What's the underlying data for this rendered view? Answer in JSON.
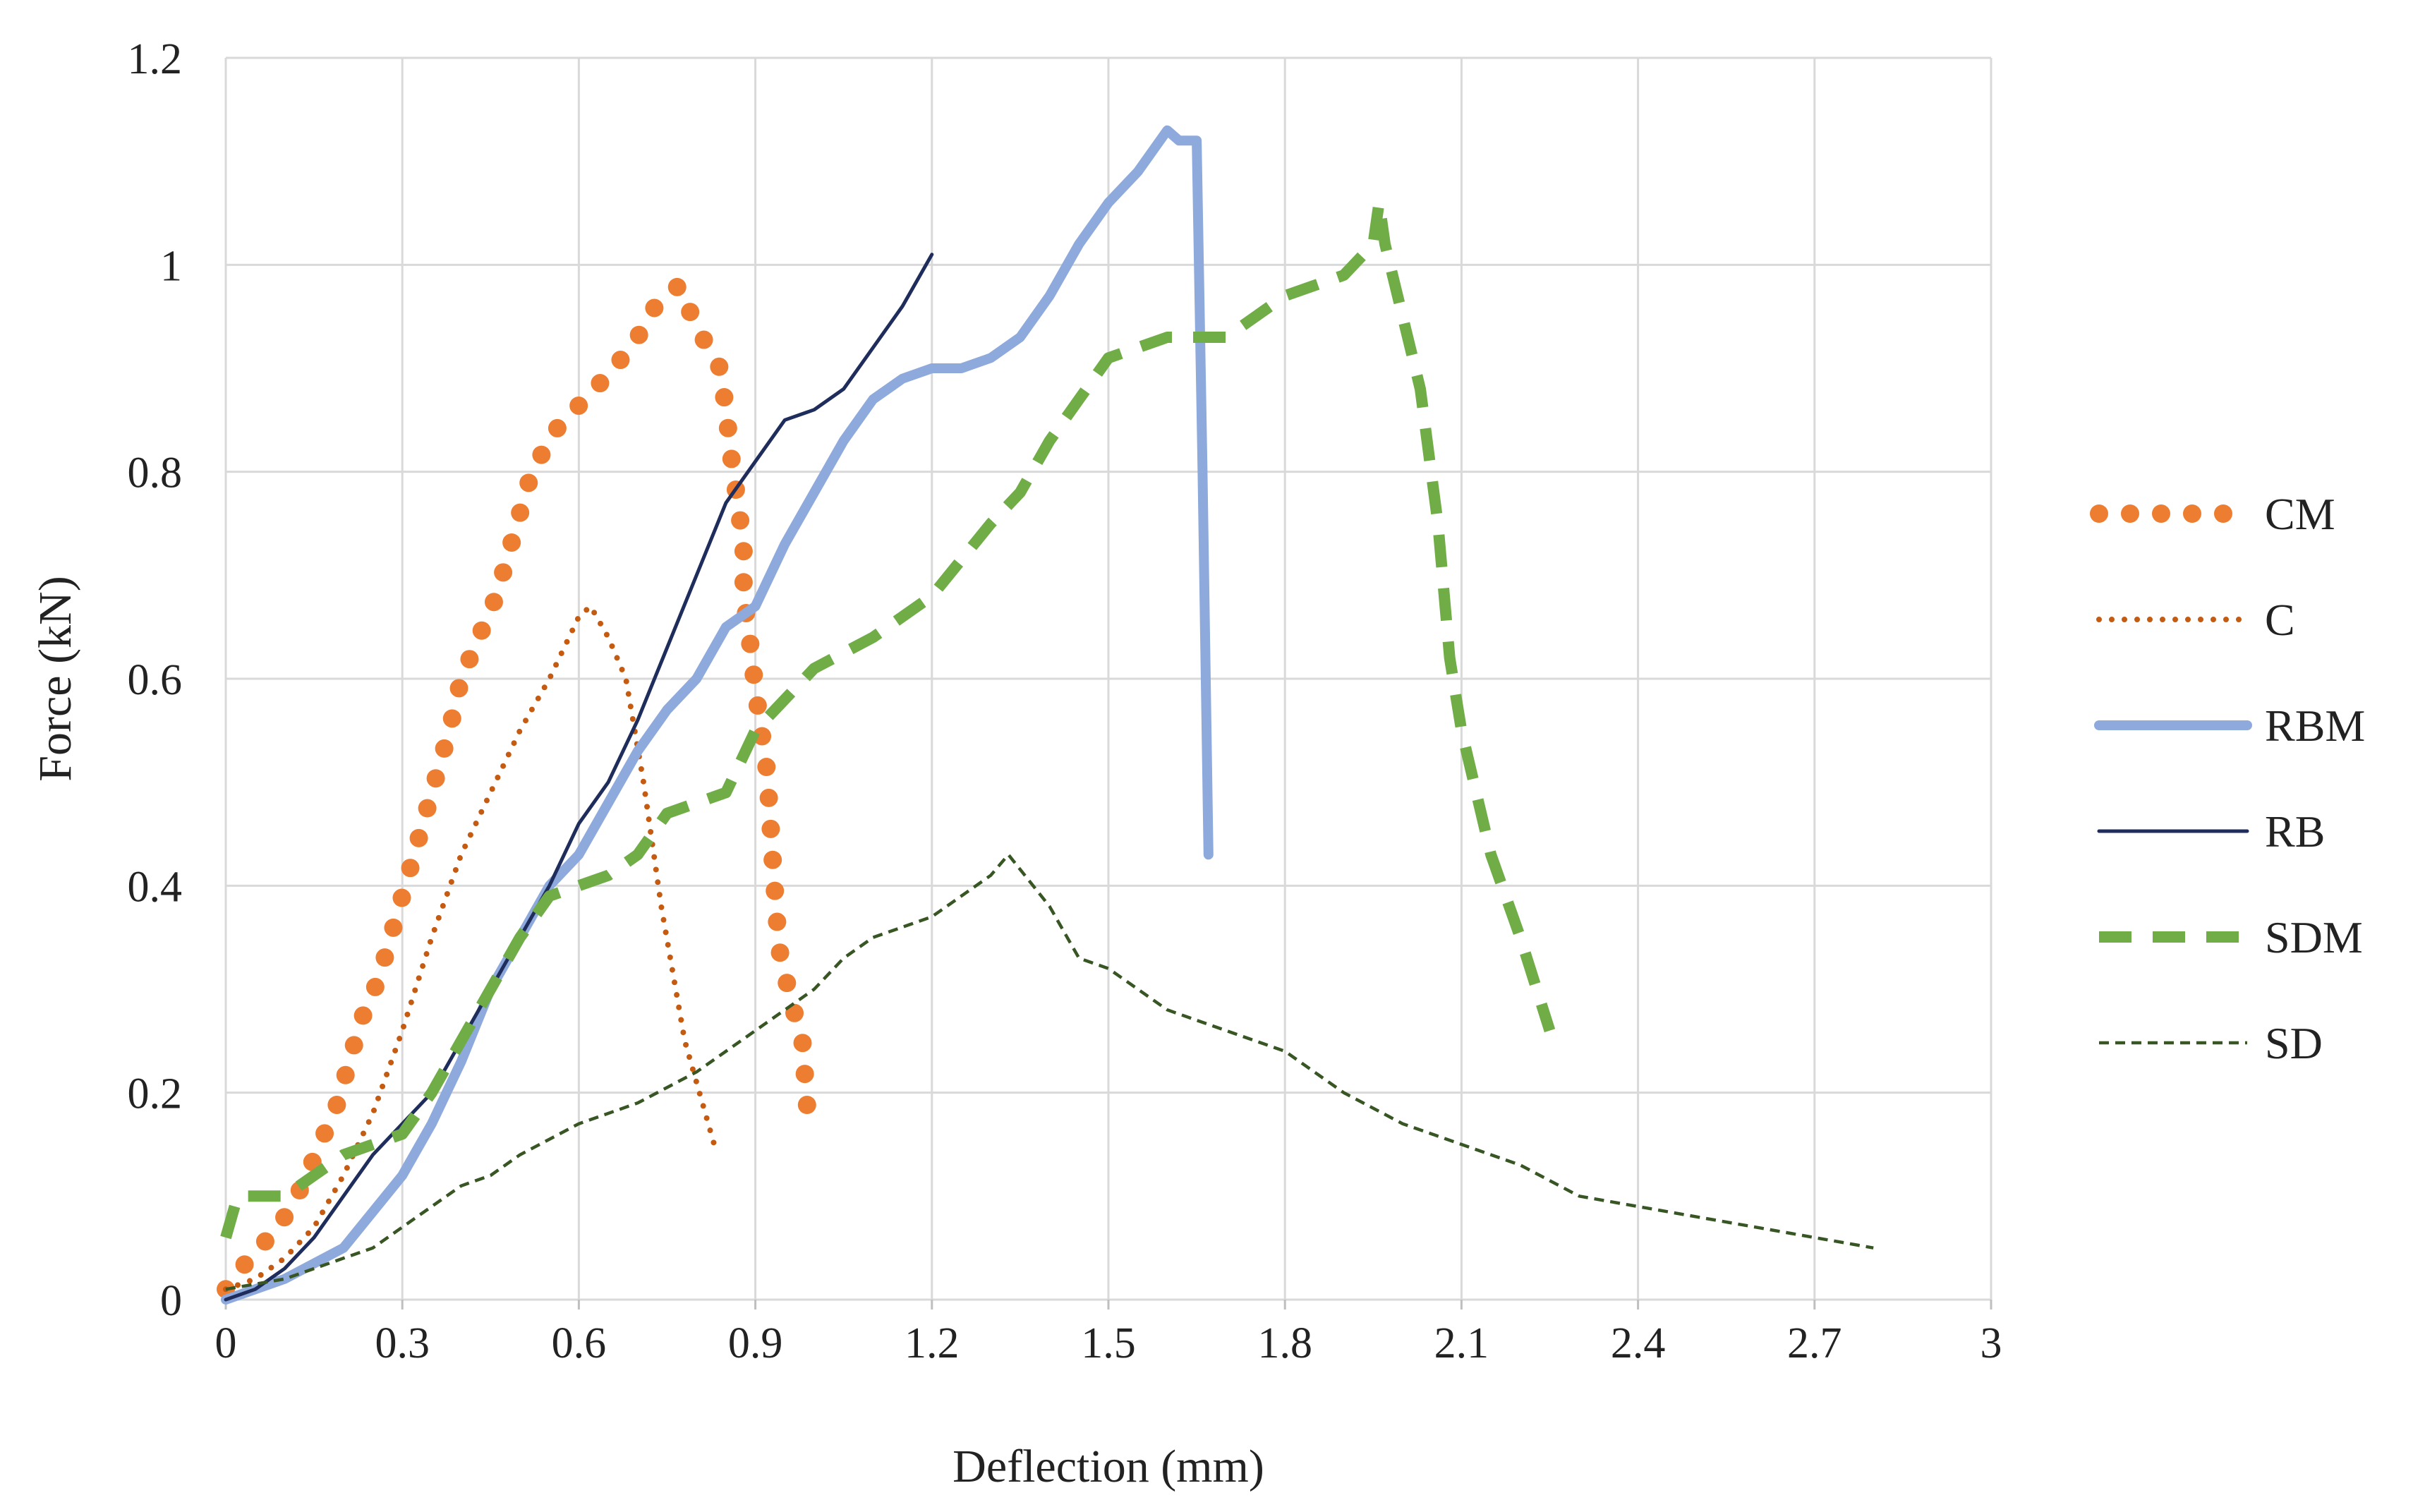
{
  "chart_data": {
    "type": "line",
    "title": "",
    "xlabel": "Deflection (mm)",
    "ylabel": "Force (kN)",
    "xlim": [
      0,
      3
    ],
    "ylim": [
      0,
      1.2
    ],
    "x_ticks": [
      0,
      0.3,
      0.6,
      0.9,
      1.2,
      1.5,
      1.8,
      2.1,
      2.4,
      2.7,
      3
    ],
    "x_tick_labels": [
      "0",
      "0.3",
      "0.6",
      "0.9",
      "1.2",
      "1.5",
      "1.8",
      "2.1",
      "2.4",
      "2.7",
      "3"
    ],
    "y_ticks": [
      0,
      0.2,
      0.4,
      0.6,
      0.8,
      1,
      1.2
    ],
    "y_tick_labels": [
      "0",
      "0.2",
      "0.4",
      "0.6",
      "0.8",
      "1",
      "1.2"
    ],
    "grid": true,
    "legend_position": "right",
    "series": [
      {
        "name": "CM",
        "style": "round-dots",
        "color": "#ED7D31",
        "x": [
          0,
          0.04,
          0.09,
          0.13,
          0.16,
          0.19,
          0.21,
          0.23,
          0.26,
          0.28,
          0.3,
          0.32,
          0.34,
          0.36,
          0.38,
          0.4,
          0.43,
          0.46,
          0.48,
          0.5,
          0.52,
          0.56,
          0.61,
          0.66,
          0.7,
          0.73,
          0.77,
          0.8,
          0.84,
          0.85,
          0.86,
          0.87,
          0.88,
          0.88,
          0.89,
          0.9,
          0.91,
          0.92,
          0.93,
          0.94,
          0.96,
          0.98,
          0.99
        ],
        "values": [
          0.01,
          0.04,
          0.07,
          0.11,
          0.15,
          0.19,
          0.23,
          0.27,
          0.31,
          0.35,
          0.39,
          0.43,
          0.47,
          0.51,
          0.55,
          0.6,
          0.64,
          0.68,
          0.72,
          0.76,
          0.8,
          0.84,
          0.87,
          0.9,
          0.93,
          0.96,
          0.98,
          0.94,
          0.9,
          0.86,
          0.81,
          0.77,
          0.73,
          0.68,
          0.64,
          0.59,
          0.55,
          0.51,
          0.42,
          0.34,
          0.29,
          0.25,
          0.17
        ]
      },
      {
        "name": "C",
        "style": "small-dots",
        "color": "#C55A11",
        "x": [
          0,
          0.05,
          0.1,
          0.15,
          0.2,
          0.25,
          0.3,
          0.35,
          0.4,
          0.45,
          0.5,
          0.55,
          0.6,
          0.62,
          0.65,
          0.68,
          0.71,
          0.74,
          0.78,
          0.83
        ],
        "values": [
          0.01,
          0.02,
          0.04,
          0.07,
          0.12,
          0.18,
          0.26,
          0.35,
          0.43,
          0.49,
          0.55,
          0.6,
          0.66,
          0.67,
          0.64,
          0.6,
          0.5,
          0.38,
          0.25,
          0.15
        ]
      },
      {
        "name": "RBM",
        "style": "thick-solid",
        "color": "#8EA9DB",
        "x": [
          0,
          0.1,
          0.2,
          0.3,
          0.35,
          0.4,
          0.45,
          0.5,
          0.55,
          0.6,
          0.65,
          0.7,
          0.75,
          0.8,
          0.85,
          0.9,
          0.95,
          1,
          1.05,
          1.1,
          1.15,
          1.2,
          1.25,
          1.3,
          1.35,
          1.4,
          1.45,
          1.5,
          1.55,
          1.6,
          1.62,
          1.65,
          1.66,
          1.67
        ],
        "values": [
          0,
          0.02,
          0.05,
          0.12,
          0.17,
          0.23,
          0.3,
          0.35,
          0.4,
          0.43,
          0.48,
          0.53,
          0.57,
          0.6,
          0.65,
          0.67,
          0.73,
          0.78,
          0.83,
          0.87,
          0.89,
          0.9,
          0.9,
          0.91,
          0.93,
          0.97,
          1.02,
          1.06,
          1.09,
          1.13,
          1.12,
          1.12,
          0.8,
          0.43
        ]
      },
      {
        "name": "RB",
        "style": "thin-solid",
        "color": "#1F2D5C",
        "x": [
          0,
          0.05,
          0.1,
          0.15,
          0.2,
          0.25,
          0.3,
          0.35,
          0.4,
          0.45,
          0.5,
          0.55,
          0.6,
          0.65,
          0.7,
          0.75,
          0.8,
          0.85,
          0.9,
          0.95,
          1,
          1.05,
          1.1,
          1.15,
          1.2
        ],
        "values": [
          0,
          0.01,
          0.03,
          0.06,
          0.1,
          0.14,
          0.17,
          0.2,
          0.25,
          0.3,
          0.35,
          0.4,
          0.46,
          0.5,
          0.56,
          0.63,
          0.7,
          0.77,
          0.81,
          0.85,
          0.86,
          0.88,
          0.92,
          0.96,
          1.01
        ]
      },
      {
        "name": "SDM",
        "style": "long-dash",
        "color": "#70AD47",
        "x": [
          0,
          0.02,
          0.05,
          0.1,
          0.15,
          0.2,
          0.25,
          0.3,
          0.35,
          0.4,
          0.45,
          0.5,
          0.55,
          0.6,
          0.65,
          0.7,
          0.75,
          0.8,
          0.85,
          0.9,
          1,
          1.1,
          1.2,
          1.3,
          1.35,
          1.4,
          1.5,
          1.6,
          1.7,
          1.8,
          1.9,
          1.95,
          1.96,
          1.97,
          2,
          2.03,
          2.06,
          2.08,
          2.1,
          2.15,
          2.2,
          2.25
        ],
        "values": [
          0.06,
          0.1,
          0.1,
          0.1,
          0.12,
          0.14,
          0.15,
          0.16,
          0.2,
          0.25,
          0.3,
          0.35,
          0.39,
          0.4,
          0.41,
          0.43,
          0.47,
          0.48,
          0.49,
          0.55,
          0.61,
          0.64,
          0.68,
          0.75,
          0.78,
          0.83,
          0.91,
          0.93,
          0.93,
          0.97,
          0.99,
          1.02,
          1.06,
          1.02,
          0.95,
          0.88,
          0.75,
          0.62,
          0.55,
          0.43,
          0.35,
          0.26
        ]
      },
      {
        "name": "SD",
        "style": "short-dash",
        "color": "#375623",
        "x": [
          0,
          0.1,
          0.2,
          0.25,
          0.3,
          0.35,
          0.4,
          0.45,
          0.5,
          0.6,
          0.7,
          0.8,
          0.9,
          1,
          1.05,
          1.1,
          1.2,
          1.3,
          1.33,
          1.4,
          1.45,
          1.5,
          1.6,
          1.7,
          1.8,
          1.9,
          2,
          2.1,
          2.2,
          2.3,
          2.4,
          2.5,
          2.6,
          2.7,
          2.8
        ],
        "values": [
          0.01,
          0.02,
          0.04,
          0.05,
          0.07,
          0.09,
          0.11,
          0.12,
          0.14,
          0.17,
          0.19,
          0.22,
          0.26,
          0.3,
          0.33,
          0.35,
          0.37,
          0.41,
          0.43,
          0.38,
          0.33,
          0.32,
          0.28,
          0.26,
          0.24,
          0.2,
          0.17,
          0.15,
          0.13,
          0.1,
          0.09,
          0.08,
          0.07,
          0.06,
          0.05
        ]
      }
    ]
  }
}
